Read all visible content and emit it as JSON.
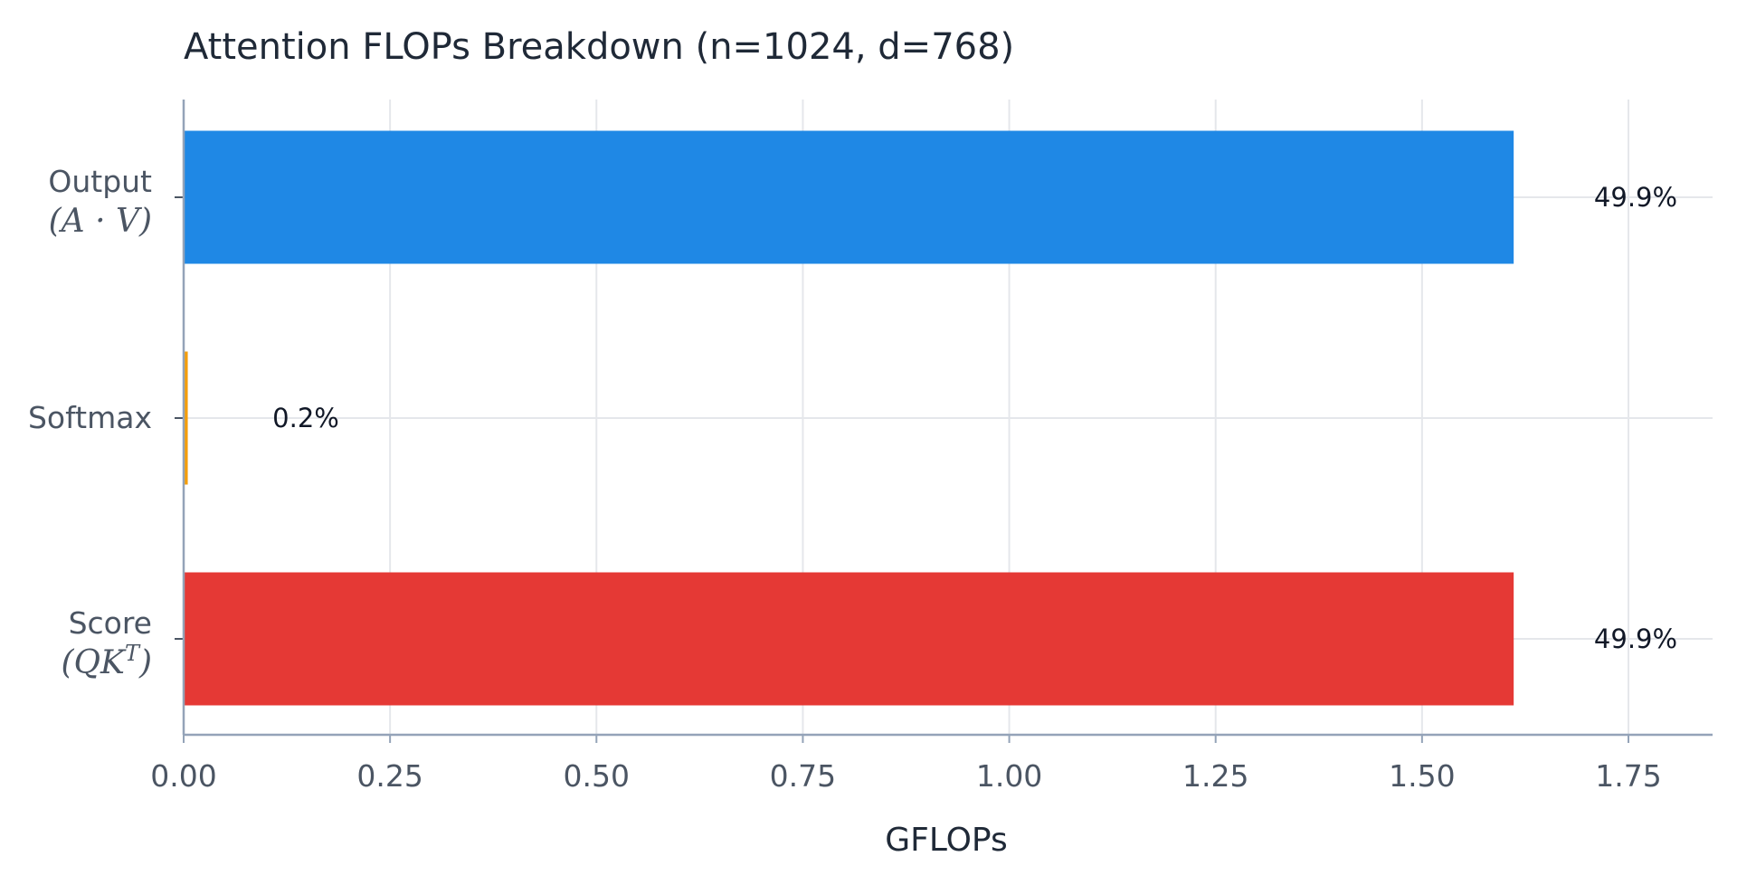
{
  "chart_data": {
    "type": "bar",
    "orientation": "horizontal",
    "title": "Attention FLOPs Breakdown (n=1024, d=768)",
    "xlabel": "GFLOPs",
    "ylabel": "",
    "xlim": [
      0,
      1.85
    ],
    "x_ticks": [
      0.0,
      0.25,
      0.5,
      0.75,
      1.0,
      1.25,
      1.5,
      1.75
    ],
    "x_tick_labels": [
      "0.00",
      "0.25",
      "0.50",
      "0.75",
      "1.00",
      "1.25",
      "1.50",
      "1.75"
    ],
    "grid": true,
    "categories": [
      {
        "label": "Output",
        "math": "(A · V)",
        "value": 1.611,
        "percent_label": "49.9%",
        "color": "#1f88e5"
      },
      {
        "label": "Softmax",
        "math": "",
        "value": 0.005,
        "percent_label": "0.2%",
        "color": "#f59e0b"
      },
      {
        "label": "Score",
        "math": "(QK",
        "math_sup": "T",
        "math_close": ")",
        "value": 1.611,
        "percent_label": "49.9%",
        "color": "#e53935"
      }
    ]
  }
}
